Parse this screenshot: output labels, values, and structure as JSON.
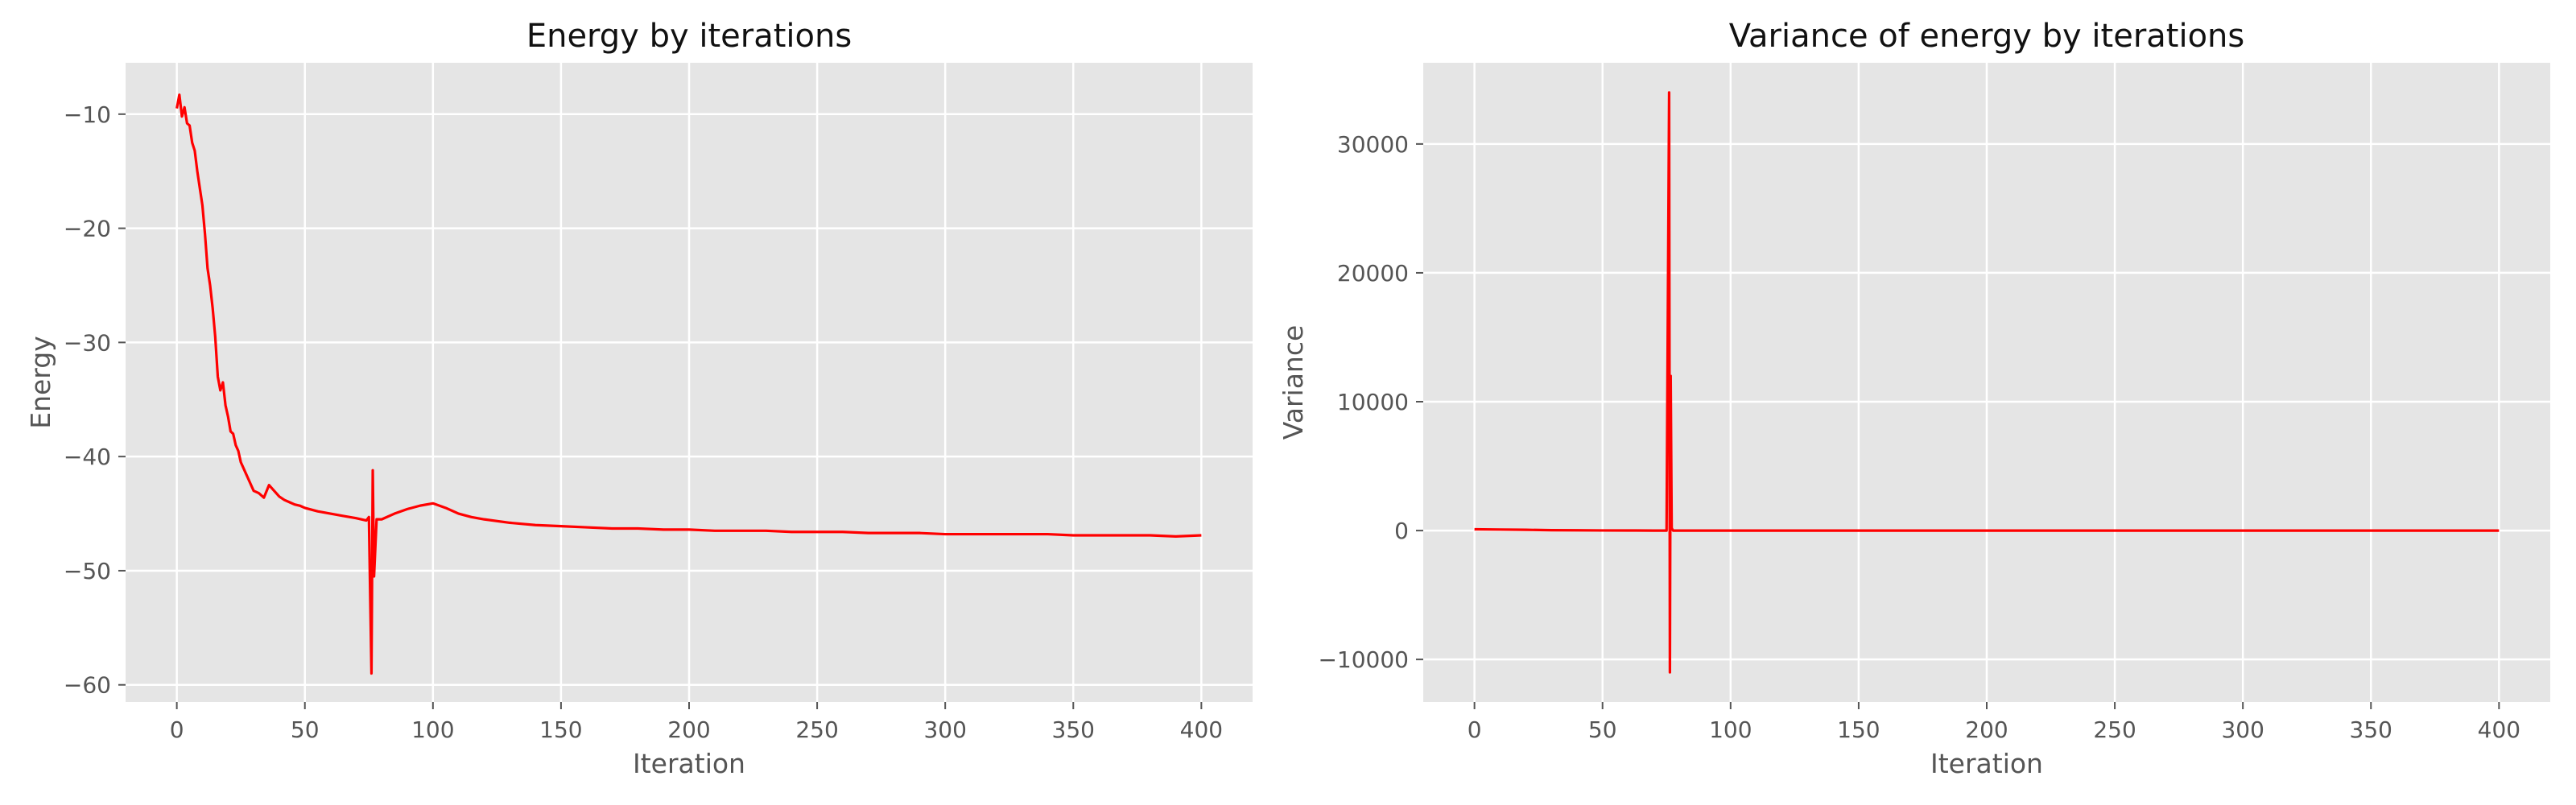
{
  "chart_data": [
    {
      "type": "line",
      "title": "Energy by iterations",
      "xlabel": "Iteration",
      "ylabel": "Energy",
      "xlim": [
        -20,
        420
      ],
      "ylim": [
        -61.5,
        -5.5
      ],
      "xticks": [
        0,
        50,
        100,
        150,
        200,
        250,
        300,
        350,
        400
      ],
      "yticks": [
        -60,
        -50,
        -40,
        -30,
        -20,
        -10
      ],
      "xtick_labels": [
        "0",
        "50",
        "100",
        "150",
        "200",
        "250",
        "300",
        "350",
        "400"
      ],
      "ytick_labels": [
        "−60",
        "−50",
        "−40",
        "−30",
        "−20",
        "−10"
      ],
      "grid": true,
      "color": "#ff0000",
      "series": [
        {
          "x": [
            0,
            1,
            2,
            3,
            4,
            5,
            6,
            7,
            8,
            9,
            10,
            11,
            12,
            13,
            14,
            15,
            16,
            17,
            18,
            19,
            20,
            21,
            22,
            23,
            24,
            25,
            26,
            27,
            28,
            29,
            30,
            32,
            34,
            36,
            38,
            40,
            42,
            44,
            46,
            48,
            50,
            55,
            60,
            65,
            70,
            74,
            75,
            76,
            76.5,
            77,
            78,
            80,
            85,
            90,
            95,
            100,
            105,
            110,
            115,
            120,
            130,
            140,
            150,
            160,
            170,
            180,
            190,
            200,
            210,
            220,
            230,
            240,
            250,
            260,
            270,
            280,
            290,
            300,
            310,
            320,
            330,
            340,
            350,
            360,
            370,
            380,
            390,
            400
          ],
          "y": [
            -9.5,
            -8.3,
            -10.2,
            -9.4,
            -10.8,
            -11.0,
            -12.5,
            -13.2,
            -15.0,
            -16.5,
            -18.0,
            -20.5,
            -23.5,
            -25.0,
            -27.0,
            -29.5,
            -33.0,
            -34.2,
            -33.5,
            -35.5,
            -36.5,
            -37.8,
            -38.0,
            -39.0,
            -39.5,
            -40.5,
            -41.0,
            -41.5,
            -42.0,
            -42.5,
            -43.0,
            -43.2,
            -43.6,
            -42.5,
            -43.0,
            -43.5,
            -43.8,
            -44.0,
            -44.2,
            -44.3,
            -44.5,
            -44.8,
            -45.0,
            -45.2,
            -45.4,
            -45.6,
            -45.3,
            -59.0,
            -41.2,
            -50.5,
            -45.5,
            -45.5,
            -45.0,
            -44.6,
            -44.3,
            -44.1,
            -44.5,
            -45.0,
            -45.3,
            -45.5,
            -45.8,
            -46.0,
            -46.1,
            -46.2,
            -46.3,
            -46.3,
            -46.4,
            -46.4,
            -46.5,
            -46.5,
            -46.5,
            -46.6,
            -46.6,
            -46.6,
            -46.7,
            -46.7,
            -46.7,
            -46.8,
            -46.8,
            -46.8,
            -46.8,
            -46.8,
            -46.9,
            -46.9,
            -46.9,
            -46.9,
            -47.0,
            -46.9
          ]
        }
      ]
    },
    {
      "type": "line",
      "title": "Variance of energy by iterations",
      "xlabel": "Iteration",
      "ylabel": "Variance",
      "xlim": [
        -20,
        420
      ],
      "ylim": [
        -13300,
        36300
      ],
      "xticks": [
        0,
        50,
        100,
        150,
        200,
        250,
        300,
        350,
        400
      ],
      "yticks": [
        -10000,
        0,
        10000,
        20000,
        30000
      ],
      "xtick_labels": [
        "0",
        "50",
        "100",
        "150",
        "200",
        "250",
        "300",
        "350",
        "400"
      ],
      "ytick_labels": [
        "−10000",
        "0",
        "10000",
        "20000",
        "30000"
      ],
      "grid": true,
      "color": "#ff0000",
      "series": [
        {
          "x": [
            0,
            10,
            20,
            30,
            40,
            50,
            60,
            70,
            75,
            76,
            76.3,
            76.6,
            77,
            77.5,
            78,
            80,
            100,
            150,
            200,
            250,
            300,
            350,
            400
          ],
          "y": [
            100,
            80,
            60,
            30,
            20,
            10,
            5,
            0,
            0,
            34000,
            -11000,
            12000,
            200,
            0,
            0,
            0,
            0,
            0,
            0,
            0,
            0,
            0,
            0
          ]
        }
      ]
    }
  ]
}
